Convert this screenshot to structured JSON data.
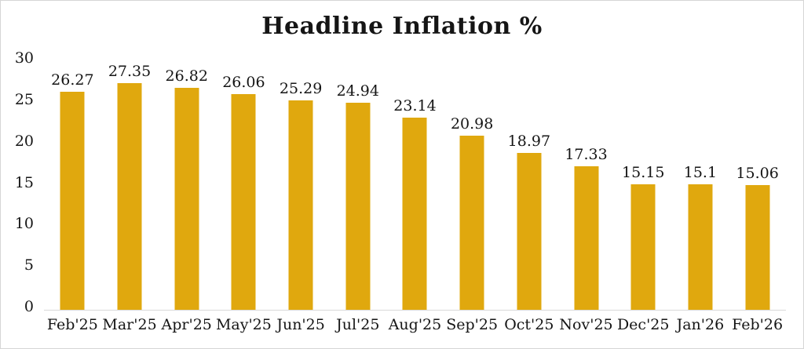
{
  "chart_data": {
    "type": "bar",
    "title": "Headline Inflation %",
    "categories": [
      "Feb'25",
      "Mar'25",
      "Apr'25",
      "May'25",
      "Jun'25",
      "Jul'25",
      "Aug'25",
      "Sep'25",
      "Oct'25",
      "Nov'25",
      "Dec'25",
      "Jan'26",
      "Feb'26"
    ],
    "values": [
      26.27,
      27.35,
      26.82,
      26.06,
      25.29,
      24.94,
      23.14,
      20.98,
      18.97,
      17.33,
      15.15,
      15.1,
      15.06
    ],
    "data_labels": [
      "26.27",
      "27.35",
      "26.82",
      "26.06",
      "25.29",
      "24.94",
      "23.14",
      "20.98",
      "18.97",
      "17.33",
      "15.15",
      "15.1",
      "15.06"
    ],
    "xlabel": "",
    "ylabel": "",
    "ylim": [
      0,
      30
    ],
    "yticks": [
      "0",
      "5",
      "10",
      "15",
      "20",
      "25",
      "30"
    ],
    "grid": false,
    "legend_position": "none",
    "bar_color": "#e0a80e",
    "axis_line_color": "#d9d9d9",
    "text_color": "#151515",
    "background_color": "#ffffff",
    "border_color": "#d6d6d6"
  }
}
